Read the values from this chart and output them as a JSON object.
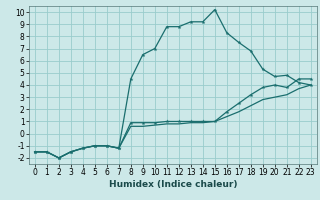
{
  "xlabel": "Humidex (Indice chaleur)",
  "background_color": "#cce8e8",
  "grid_color": "#99cccc",
  "line_color": "#1a6e6e",
  "xlim": [
    -0.5,
    23.5
  ],
  "ylim": [
    -2.5,
    10.5
  ],
  "xticks": [
    0,
    1,
    2,
    3,
    4,
    5,
    6,
    7,
    8,
    9,
    10,
    11,
    12,
    13,
    14,
    15,
    16,
    17,
    18,
    19,
    20,
    21,
    22,
    23
  ],
  "yticks": [
    -2,
    -1,
    0,
    1,
    2,
    3,
    4,
    5,
    6,
    7,
    8,
    9,
    10
  ],
  "series1_x": [
    0,
    1,
    2,
    3,
    4,
    5,
    6,
    7,
    8,
    9,
    10,
    11,
    12,
    13,
    14,
    15,
    16,
    17,
    18,
    19,
    20,
    21,
    22,
    23
  ],
  "series1_y": [
    -1.5,
    -1.5,
    -2.0,
    -1.5,
    -1.2,
    -1.0,
    -1.0,
    -1.2,
    4.5,
    6.5,
    7.0,
    8.8,
    8.8,
    9.2,
    9.2,
    10.2,
    8.3,
    7.5,
    6.8,
    5.3,
    4.7,
    4.8,
    4.2,
    4.0
  ],
  "series2_x": [
    0,
    1,
    2,
    3,
    4,
    5,
    6,
    7,
    8,
    9,
    10,
    11,
    12,
    13,
    14,
    15,
    16,
    17,
    18,
    19,
    20,
    21,
    22,
    23
  ],
  "series2_y": [
    -1.5,
    -1.5,
    -2.0,
    -1.5,
    -1.2,
    -1.0,
    -1.0,
    -1.2,
    0.9,
    0.9,
    0.9,
    1.0,
    1.0,
    1.0,
    1.0,
    1.0,
    1.8,
    2.5,
    3.2,
    3.8,
    4.0,
    3.8,
    4.5,
    4.5
  ],
  "series3_x": [
    0,
    1,
    2,
    3,
    4,
    5,
    6,
    7,
    8,
    9,
    10,
    11,
    12,
    13,
    14,
    15,
    16,
    17,
    18,
    19,
    20,
    21,
    22,
    23
  ],
  "series3_y": [
    -1.5,
    -1.5,
    -2.0,
    -1.5,
    -1.2,
    -1.0,
    -1.0,
    -1.2,
    0.6,
    0.6,
    0.7,
    0.8,
    0.8,
    0.9,
    0.9,
    1.0,
    1.4,
    1.8,
    2.3,
    2.8,
    3.0,
    3.2,
    3.7,
    4.0
  ]
}
